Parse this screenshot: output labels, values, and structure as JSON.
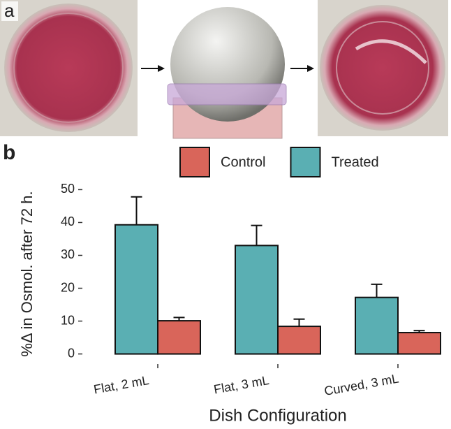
{
  "panel_labels": {
    "a": "a",
    "b": "b"
  },
  "chart_data": {
    "type": "bar",
    "categories": [
      "Flat, 2 mL",
      "Flat, 3 mL",
      "Curved, 3 mL"
    ],
    "x_label": "Dish Configuration",
    "y_label": "%Δ in Osmol. after 72 h.",
    "series": [
      {
        "name": "Treated",
        "color": "#5aafb3",
        "values": [
          39.3,
          33.0,
          17.2
        ],
        "errors": [
          8.5,
          6.1,
          4.0
        ]
      },
      {
        "name": "Control",
        "color": "#d9655a",
        "values": [
          10.1,
          8.4,
          6.5
        ],
        "errors": [
          1.0,
          2.2,
          0.6
        ]
      }
    ],
    "legend_order": [
      "Control",
      "Treated"
    ],
    "ylim": [
      -2,
      52
    ],
    "yticks": [
      0,
      10,
      20,
      30,
      40,
      50
    ]
  }
}
